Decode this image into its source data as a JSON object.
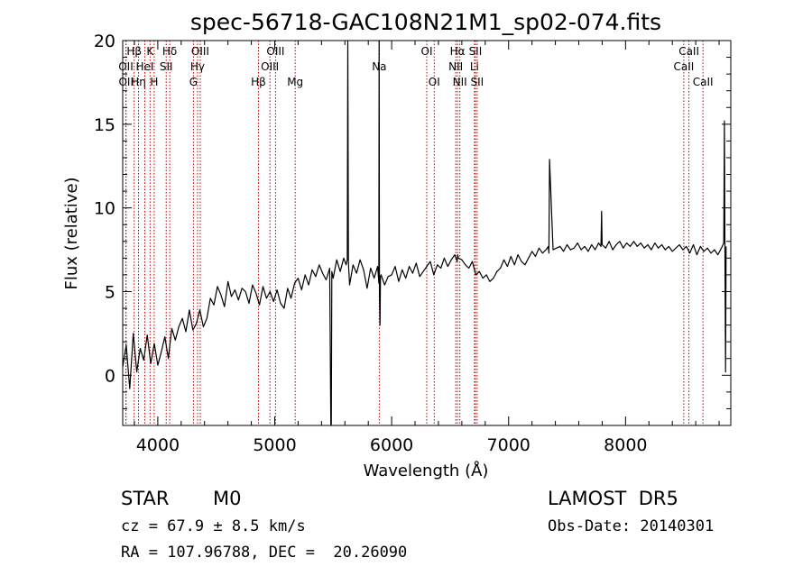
{
  "chart_data": {
    "type": "line",
    "title": "spec-56718-GAC108N21M1_sp02-074.fits",
    "xlabel": "Wavelength (Å)",
    "ylabel": "Flux (relative)",
    "xlim": [
      3700,
      8900
    ],
    "ylim": [
      -3,
      20
    ],
    "xticks": [
      4000,
      5000,
      6000,
      7000,
      8000
    ],
    "yticks": [
      0,
      5,
      10,
      15,
      20
    ],
    "grid": false,
    "series": [
      {
        "x": [
          3700,
          3730,
          3760,
          3790,
          3820,
          3850,
          3880,
          3910,
          3940,
          3970,
          4000,
          4030,
          4060,
          4090,
          4120,
          4150,
          4180,
          4210,
          4240,
          4270,
          4300,
          4330,
          4360,
          4390,
          4420,
          4450,
          4480,
          4510,
          4540,
          4570,
          4600,
          4630,
          4660,
          4690,
          4720,
          4750,
          4780,
          4810,
          4840,
          4870,
          4900,
          4930,
          4960,
          4990,
          5020,
          5050,
          5080,
          5110,
          5140,
          5170,
          5200,
          5230,
          5260,
          5290,
          5320,
          5350,
          5380,
          5410,
          5440,
          5470,
          5480,
          5484,
          5488,
          5500,
          5530,
          5560,
          5590,
          5610,
          5620,
          5625,
          5630,
          5640,
          5670,
          5700,
          5730,
          5760,
          5790,
          5820,
          5850,
          5880,
          5890,
          5893,
          5896,
          5900,
          5904,
          5910,
          5940,
          5970,
          6000,
          6030,
          6060,
          6090,
          6120,
          6150,
          6180,
          6210,
          6240,
          6270,
          6300,
          6330,
          6360,
          6390,
          6420,
          6450,
          6480,
          6510,
          6540,
          6560,
          6565,
          6570,
          6600,
          6630,
          6660,
          6690,
          6720,
          6750,
          6780,
          6810,
          6840,
          6870,
          6900,
          6930,
          6960,
          6990,
          7020,
          7050,
          7080,
          7110,
          7140,
          7170,
          7200,
          7230,
          7260,
          7290,
          7320,
          7340,
          7345,
          7350,
          7380,
          7410,
          7440,
          7470,
          7500,
          7530,
          7560,
          7590,
          7620,
          7650,
          7680,
          7710,
          7740,
          7770,
          7790,
          7795,
          7800,
          7830,
          7860,
          7890,
          7920,
          7950,
          7980,
          8010,
          8040,
          8070,
          8100,
          8130,
          8160,
          8190,
          8220,
          8250,
          8280,
          8310,
          8340,
          8370,
          8400,
          8430,
          8460,
          8490,
          8520,
          8550,
          8580,
          8610,
          8640,
          8670,
          8700,
          8730,
          8760,
          8790,
          8820,
          8840,
          8845,
          8850,
          8855,
          8860
        ],
        "y": [
          0.5,
          1.8,
          -0.8,
          2.5,
          0.2,
          1.6,
          0.9,
          2.4,
          0.7,
          1.9,
          0.6,
          1.4,
          2.3,
          1.0,
          2.8,
          2.1,
          2.9,
          3.4,
          2.6,
          3.9,
          2.7,
          3.1,
          3.9,
          2.9,
          3.4,
          4.6,
          4.2,
          5.3,
          4.8,
          4.1,
          5.6,
          4.7,
          5.1,
          4.5,
          5.2,
          5.0,
          4.3,
          5.4,
          4.9,
          4.2,
          5.3,
          4.6,
          5.0,
          4.4,
          5.1,
          4.3,
          4.0,
          5.2,
          4.6,
          5.5,
          5.8,
          5.1,
          6.0,
          5.4,
          6.3,
          5.9,
          6.6,
          6.1,
          5.7,
          6.4,
          -3.0,
          -3.0,
          6.2,
          5.8,
          6.9,
          6.2,
          7.0,
          6.6,
          6.9,
          20.0,
          6.7,
          5.4,
          6.6,
          6.1,
          6.9,
          6.3,
          5.2,
          6.4,
          5.8,
          6.5,
          5.5,
          20.0,
          4.8,
          3.0,
          5.9,
          6.0,
          5.4,
          5.9,
          6.0,
          6.5,
          5.6,
          6.3,
          5.8,
          6.5,
          6.1,
          6.7,
          5.9,
          6.2,
          6.5,
          6.8,
          6.0,
          6.6,
          6.4,
          7.0,
          6.5,
          6.9,
          7.2,
          6.8,
          7.2,
          7.0,
          6.9,
          6.6,
          6.4,
          6.8,
          6.0,
          6.2,
          5.8,
          6.0,
          5.6,
          5.8,
          6.2,
          6.4,
          6.9,
          6.5,
          7.1,
          6.6,
          7.2,
          6.8,
          6.6,
          7.0,
          7.4,
          7.1,
          7.6,
          7.3,
          7.5,
          7.7,
          7.3,
          12.9,
          7.5,
          7.6,
          7.7,
          7.4,
          7.8,
          7.5,
          7.6,
          7.9,
          7.5,
          7.7,
          7.4,
          7.8,
          7.5,
          7.9,
          7.7,
          9.8,
          7.8,
          7.6,
          8.0,
          7.5,
          7.8,
          8.0,
          7.6,
          7.9,
          7.7,
          8.0,
          7.7,
          7.9,
          7.6,
          7.8,
          7.5,
          7.9,
          7.6,
          7.8,
          7.5,
          7.7,
          7.4,
          7.6,
          7.8,
          7.5,
          7.7,
          7.3,
          7.8,
          7.2,
          7.7,
          7.4,
          7.6,
          7.3,
          7.5,
          7.2,
          7.6,
          7.9,
          15.2,
          7.5,
          0.2,
          7.7
        ]
      }
    ],
    "lines": [
      {
        "label": "Hβ",
        "w": 3798,
        "row": 0
      },
      {
        "label": "OII",
        "w": 3727,
        "row": 1
      },
      {
        "label": "OII",
        "w": 3729,
        "row": 2
      },
      {
        "label": "Hη",
        "w": 3835,
        "row": 2
      },
      {
        "label": "HeI",
        "w": 3889,
        "row": 1
      },
      {
        "label": "K",
        "w": 3934,
        "row": 0
      },
      {
        "label": "H",
        "w": 3969,
        "row": 2
      },
      {
        "label": "Hδ",
        "w": 4102,
        "row": 0
      },
      {
        "label": "SII",
        "w": 4072,
        "row": 1
      },
      {
        "label": "OIII",
        "w": 4363,
        "row": 0
      },
      {
        "label": "Hγ",
        "w": 4340,
        "row": 1
      },
      {
        "label": "G",
        "w": 4305,
        "row": 2
      },
      {
        "label": "Hβ",
        "w": 4861,
        "row": 2
      },
      {
        "label": "OIII",
        "w": 4959,
        "row": 1
      },
      {
        "label": "OIII",
        "w": 5007,
        "row": 0
      },
      {
        "label": "Mg",
        "w": 5175,
        "row": 2
      },
      {
        "label": "Na",
        "w": 5894,
        "row": 1
      },
      {
        "label": "OI",
        "w": 6300,
        "row": 0
      },
      {
        "label": "OI",
        "w": 6364,
        "row": 2
      },
      {
        "label": "Hα",
        "w": 6563,
        "row": 0
      },
      {
        "label": "NII",
        "w": 6548,
        "row": 1
      },
      {
        "label": "NII",
        "w": 6583,
        "row": 2
      },
      {
        "label": "SII",
        "w": 6716,
        "row": 0
      },
      {
        "label": "Li",
        "w": 6708,
        "row": 1
      },
      {
        "label": "SII",
        "w": 6731,
        "row": 2
      },
      {
        "label": "CaII",
        "w": 8542,
        "row": 0
      },
      {
        "label": "CaII",
        "w": 8498,
        "row": 1
      },
      {
        "label": "CaII",
        "w": 8662,
        "row": 2
      }
    ]
  },
  "info": {
    "class_label": "STAR",
    "subclass_label": "M0",
    "survey": "LAMOST  DR5",
    "cz": "cz = 67.9 ± 8.5 km/s",
    "obs_date": "Obs-Date: 20140301",
    "radec": "RA = 107.96788, DEC =  20.26090"
  },
  "colors": {
    "line_marker": "#c00000",
    "spectrum": "#000000",
    "axes": "#000000"
  }
}
